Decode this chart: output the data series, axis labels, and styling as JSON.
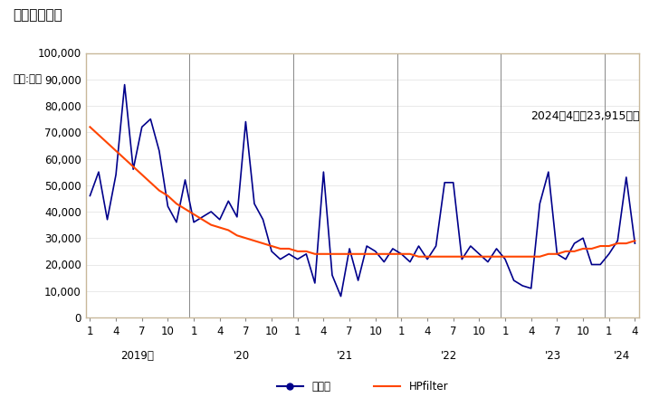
{
  "title": "輸入額の推移",
  "unit_label": "単位:万円",
  "annotation": "2024年4月：23,915万円",
  "background_color": "#ffffff",
  "plot_bg_color": "#ffffff",
  "border_color": "#c8b89a",
  "ylim": [
    0,
    100000
  ],
  "yticks": [
    0,
    10000,
    20000,
    30000,
    40000,
    50000,
    60000,
    70000,
    80000,
    90000,
    100000
  ],
  "series_color": "#00008B",
  "hp_color": "#FF4500",
  "legend_items": [
    "輸入額",
    "HPfilter"
  ],
  "monthly_values": [
    46000,
    55000,
    37000,
    54000,
    88000,
    56000,
    72000,
    75000,
    63000,
    42000,
    36000,
    52000,
    36000,
    38000,
    40000,
    37000,
    44000,
    38000,
    74000,
    43000,
    37000,
    25000,
    22000,
    24000,
    22000,
    24000,
    13000,
    55000,
    16000,
    8000,
    26000,
    14000,
    27000,
    25000,
    21000,
    26000,
    24000,
    21000,
    27000,
    22000,
    27000,
    51000,
    51000,
    22000,
    27000,
    24000,
    21000,
    26000,
    22000,
    14000,
    12000,
    11000,
    43000,
    55000,
    24000,
    22000,
    28000,
    30000,
    20000,
    20000,
    24000,
    29000,
    53000,
    28000
  ],
  "hp_values": [
    72000,
    69000,
    66000,
    63000,
    60000,
    57000,
    54000,
    51000,
    48000,
    46000,
    43000,
    41000,
    39000,
    37000,
    35000,
    34000,
    33000,
    31000,
    30000,
    29000,
    28000,
    27000,
    26000,
    26000,
    25000,
    25000,
    24000,
    24000,
    24000,
    24000,
    24000,
    24000,
    24000,
    24000,
    24000,
    24000,
    24000,
    24000,
    23000,
    23000,
    23000,
    23000,
    23000,
    23000,
    23000,
    23000,
    23000,
    23000,
    23000,
    23000,
    23000,
    23000,
    23000,
    24000,
    24000,
    25000,
    25000,
    26000,
    26000,
    27000,
    27000,
    28000,
    28000,
    29000
  ],
  "year_labels": [
    "2019年",
    "'20",
    "'21",
    "'22",
    "'23",
    "'24"
  ],
  "title_fontsize": 11,
  "axis_fontsize": 8.5,
  "annotation_fontsize": 9
}
